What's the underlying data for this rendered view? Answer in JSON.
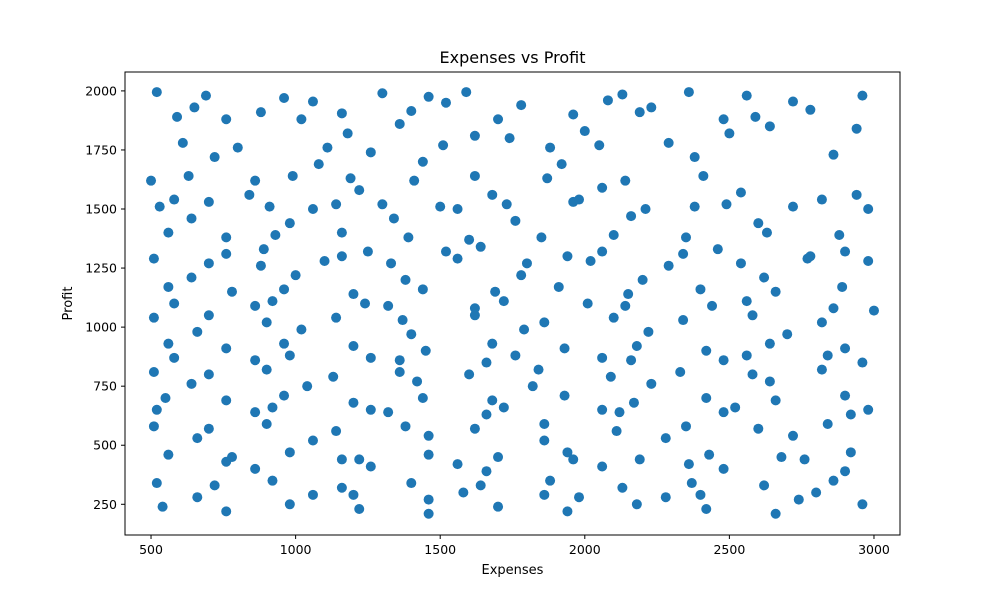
{
  "chart_data": {
    "type": "scatter",
    "title": "Expenses vs Profit",
    "xlabel": "Expenses",
    "ylabel": "Profit",
    "xlim": [
      410,
      3090
    ],
    "ylim": [
      120,
      2080
    ],
    "xticks": [
      500,
      1000,
      1500,
      2000,
      2500,
      3000
    ],
    "yticks": [
      250,
      500,
      750,
      1000,
      1250,
      1500,
      1750,
      2000
    ],
    "grid": false,
    "legend": "none",
    "marker_color": "#1f77b4",
    "points": [
      [
        520,
        1995
      ],
      [
        690,
        1980
      ],
      [
        1060,
        1955
      ],
      [
        1300,
        1990
      ],
      [
        1460,
        1975
      ],
      [
        1590,
        1995
      ],
      [
        2130,
        1985
      ],
      [
        2360,
        1995
      ],
      [
        2720,
        1955
      ],
      [
        2960,
        1980
      ],
      [
        590,
        1890
      ],
      [
        760,
        1880
      ],
      [
        880,
        1910
      ],
      [
        1160,
        1905
      ],
      [
        1400,
        1915
      ],
      [
        1700,
        1880
      ],
      [
        1960,
        1900
      ],
      [
        2190,
        1910
      ],
      [
        2480,
        1880
      ],
      [
        2590,
        1890
      ],
      [
        610,
        1780
      ],
      [
        800,
        1760
      ],
      [
        1110,
        1760
      ],
      [
        1260,
        1740
      ],
      [
        1510,
        1770
      ],
      [
        1740,
        1800
      ],
      [
        1880,
        1760
      ],
      [
        2050,
        1770
      ],
      [
        2290,
        1780
      ],
      [
        2640,
        1850
      ],
      [
        500,
        1620
      ],
      [
        630,
        1640
      ],
      [
        860,
        1620
      ],
      [
        990,
        1640
      ],
      [
        1190,
        1630
      ],
      [
        1410,
        1620
      ],
      [
        1620,
        1640
      ],
      [
        1870,
        1630
      ],
      [
        2140,
        1620
      ],
      [
        2410,
        1640
      ],
      [
        530,
        1510
      ],
      [
        700,
        1530
      ],
      [
        910,
        1510
      ],
      [
        1060,
        1500
      ],
      [
        1300,
        1520
      ],
      [
        1500,
        1510
      ],
      [
        1730,
        1520
      ],
      [
        1960,
        1530
      ],
      [
        2210,
        1500
      ],
      [
        2490,
        1520
      ],
      [
        2720,
        1510
      ],
      [
        2980,
        1500
      ],
      [
        560,
        1400
      ],
      [
        760,
        1380
      ],
      [
        930,
        1390
      ],
      [
        1160,
        1400
      ],
      [
        1390,
        1380
      ],
      [
        1600,
        1370
      ],
      [
        1850,
        1380
      ],
      [
        2100,
        1390
      ],
      [
        2350,
        1380
      ],
      [
        2630,
        1400
      ],
      [
        2880,
        1390
      ],
      [
        510,
        1290
      ],
      [
        700,
        1270
      ],
      [
        880,
        1260
      ],
      [
        1100,
        1280
      ],
      [
        1330,
        1270
      ],
      [
        1560,
        1290
      ],
      [
        1800,
        1270
      ],
      [
        2020,
        1280
      ],
      [
        2290,
        1260
      ],
      [
        2540,
        1270
      ],
      [
        2770,
        1290
      ],
      [
        2980,
        1280
      ],
      [
        560,
        1170
      ],
      [
        780,
        1150
      ],
      [
        960,
        1160
      ],
      [
        1200,
        1140
      ],
      [
        1440,
        1160
      ],
      [
        1690,
        1150
      ],
      [
        1910,
        1170
      ],
      [
        2150,
        1140
      ],
      [
        2400,
        1160
      ],
      [
        2660,
        1150
      ],
      [
        2890,
        1170
      ],
      [
        510,
        1040
      ],
      [
        700,
        1050
      ],
      [
        900,
        1020
      ],
      [
        1140,
        1040
      ],
      [
        1370,
        1030
      ],
      [
        1620,
        1050
      ],
      [
        1860,
        1020
      ],
      [
        2100,
        1040
      ],
      [
        2340,
        1030
      ],
      [
        2580,
        1050
      ],
      [
        2820,
        1020
      ],
      [
        3000,
        1070
      ],
      [
        560,
        930
      ],
      [
        760,
        910
      ],
      [
        960,
        930
      ],
      [
        1200,
        920
      ],
      [
        1450,
        900
      ],
      [
        1680,
        930
      ],
      [
        1930,
        910
      ],
      [
        2180,
        920
      ],
      [
        2420,
        900
      ],
      [
        2640,
        930
      ],
      [
        2900,
        910
      ],
      [
        510,
        810
      ],
      [
        700,
        800
      ],
      [
        900,
        820
      ],
      [
        1130,
        790
      ],
      [
        1360,
        810
      ],
      [
        1600,
        800
      ],
      [
        1840,
        820
      ],
      [
        2090,
        790
      ],
      [
        2330,
        810
      ],
      [
        2580,
        800
      ],
      [
        2820,
        820
      ],
      [
        550,
        700
      ],
      [
        760,
        690
      ],
      [
        960,
        710
      ],
      [
        1200,
        680
      ],
      [
        1440,
        700
      ],
      [
        1680,
        690
      ],
      [
        1930,
        710
      ],
      [
        2170,
        680
      ],
      [
        2420,
        700
      ],
      [
        2660,
        690
      ],
      [
        2900,
        710
      ],
      [
        510,
        580
      ],
      [
        700,
        570
      ],
      [
        900,
        590
      ],
      [
        1140,
        560
      ],
      [
        1380,
        580
      ],
      [
        1620,
        570
      ],
      [
        1860,
        590
      ],
      [
        2110,
        560
      ],
      [
        2350,
        580
      ],
      [
        2600,
        570
      ],
      [
        2840,
        590
      ],
      [
        560,
        460
      ],
      [
        780,
        450
      ],
      [
        980,
        470
      ],
      [
        1220,
        440
      ],
      [
        1460,
        460
      ],
      [
        1700,
        450
      ],
      [
        1940,
        470
      ],
      [
        2190,
        440
      ],
      [
        2430,
        460
      ],
      [
        2680,
        450
      ],
      [
        2920,
        470
      ],
      [
        520,
        340
      ],
      [
        720,
        330
      ],
      [
        920,
        350
      ],
      [
        1160,
        320
      ],
      [
        1400,
        340
      ],
      [
        1640,
        330
      ],
      [
        1880,
        350
      ],
      [
        2130,
        320
      ],
      [
        2370,
        340
      ],
      [
        2620,
        330
      ],
      [
        2860,
        350
      ],
      [
        540,
        240
      ],
      [
        760,
        220
      ],
      [
        980,
        250
      ],
      [
        1220,
        230
      ],
      [
        1460,
        210
      ],
      [
        1700,
        240
      ],
      [
        1940,
        220
      ],
      [
        2180,
        250
      ],
      [
        2420,
        230
      ],
      [
        2660,
        210
      ],
      [
        2960,
        250
      ],
      [
        650,
        1930
      ],
      [
        1020,
        1880
      ],
      [
        1360,
        1860
      ],
      [
        1780,
        1940
      ],
      [
        2230,
        1930
      ],
      [
        2780,
        1920
      ],
      [
        720,
        1720
      ],
      [
        1080,
        1690
      ],
      [
        1440,
        1700
      ],
      [
        1920,
        1690
      ],
      [
        2380,
        1720
      ],
      [
        2860,
        1730
      ],
      [
        840,
        1560
      ],
      [
        1220,
        1580
      ],
      [
        1680,
        1560
      ],
      [
        2060,
        1590
      ],
      [
        2540,
        1570
      ],
      [
        2940,
        1560
      ],
      [
        640,
        1460
      ],
      [
        980,
        1440
      ],
      [
        1340,
        1460
      ],
      [
        1760,
        1450
      ],
      [
        2160,
        1470
      ],
      [
        2600,
        1440
      ],
      [
        890,
        1330
      ],
      [
        1250,
        1320
      ],
      [
        1640,
        1340
      ],
      [
        2060,
        1320
      ],
      [
        2460,
        1330
      ],
      [
        2900,
        1320
      ],
      [
        640,
        1210
      ],
      [
        1000,
        1220
      ],
      [
        1380,
        1200
      ],
      [
        1780,
        1220
      ],
      [
        2200,
        1200
      ],
      [
        2620,
        1210
      ],
      [
        860,
        1090
      ],
      [
        1240,
        1100
      ],
      [
        1620,
        1080
      ],
      [
        2010,
        1100
      ],
      [
        2440,
        1090
      ],
      [
        2860,
        1080
      ],
      [
        660,
        980
      ],
      [
        1020,
        990
      ],
      [
        1400,
        970
      ],
      [
        1790,
        990
      ],
      [
        2220,
        980
      ],
      [
        2700,
        970
      ],
      [
        860,
        860
      ],
      [
        1260,
        870
      ],
      [
        1660,
        850
      ],
      [
        2060,
        870
      ],
      [
        2480,
        860
      ],
      [
        2960,
        850
      ],
      [
        640,
        760
      ],
      [
        1040,
        750
      ],
      [
        1420,
        770
      ],
      [
        1820,
        750
      ],
      [
        2230,
        760
      ],
      [
        2640,
        770
      ],
      [
        860,
        640
      ],
      [
        1260,
        650
      ],
      [
        1660,
        630
      ],
      [
        2060,
        650
      ],
      [
        2480,
        640
      ],
      [
        2920,
        630
      ],
      [
        660,
        530
      ],
      [
        1060,
        520
      ],
      [
        1460,
        540
      ],
      [
        1860,
        520
      ],
      [
        2280,
        530
      ],
      [
        2720,
        540
      ],
      [
        860,
        400
      ],
      [
        1260,
        410
      ],
      [
        1660,
        390
      ],
      [
        2060,
        410
      ],
      [
        2480,
        400
      ],
      [
        2900,
        390
      ],
      [
        660,
        280
      ],
      [
        1060,
        290
      ],
      [
        1460,
        270
      ],
      [
        1860,
        290
      ],
      [
        2280,
        280
      ],
      [
        2740,
        270
      ],
      [
        960,
        1970
      ],
      [
        1520,
        1950
      ],
      [
        2080,
        1960
      ],
      [
        2560,
        1980
      ],
      [
        1180,
        1820
      ],
      [
        1620,
        1810
      ],
      [
        2000,
        1830
      ],
      [
        2500,
        1820
      ],
      [
        2940,
        1840
      ],
      [
        580,
        1540
      ],
      [
        1140,
        1520
      ],
      [
        1560,
        1500
      ],
      [
        1980,
        1540
      ],
      [
        2380,
        1510
      ],
      [
        2820,
        1540
      ],
      [
        760,
        1310
      ],
      [
        1160,
        1300
      ],
      [
        1520,
        1320
      ],
      [
        1940,
        1300
      ],
      [
        2340,
        1310
      ],
      [
        2780,
        1300
      ],
      [
        580,
        1100
      ],
      [
        920,
        1110
      ],
      [
        1320,
        1090
      ],
      [
        1720,
        1110
      ],
      [
        2140,
        1090
      ],
      [
        2560,
        1110
      ],
      [
        580,
        870
      ],
      [
        980,
        880
      ],
      [
        1360,
        860
      ],
      [
        1760,
        880
      ],
      [
        2160,
        860
      ],
      [
        2560,
        880
      ],
      [
        2840,
        880
      ],
      [
        520,
        650
      ],
      [
        920,
        660
      ],
      [
        1320,
        640
      ],
      [
        1720,
        660
      ],
      [
        2120,
        640
      ],
      [
        2520,
        660
      ],
      [
        2980,
        650
      ],
      [
        760,
        430
      ],
      [
        1160,
        440
      ],
      [
        1560,
        420
      ],
      [
        1960,
        440
      ],
      [
        2360,
        420
      ],
      [
        2760,
        440
      ],
      [
        1200,
        290
      ],
      [
        1580,
        300
      ],
      [
        1980,
        280
      ],
      [
        2400,
        290
      ],
      [
        2800,
        300
      ]
    ]
  }
}
